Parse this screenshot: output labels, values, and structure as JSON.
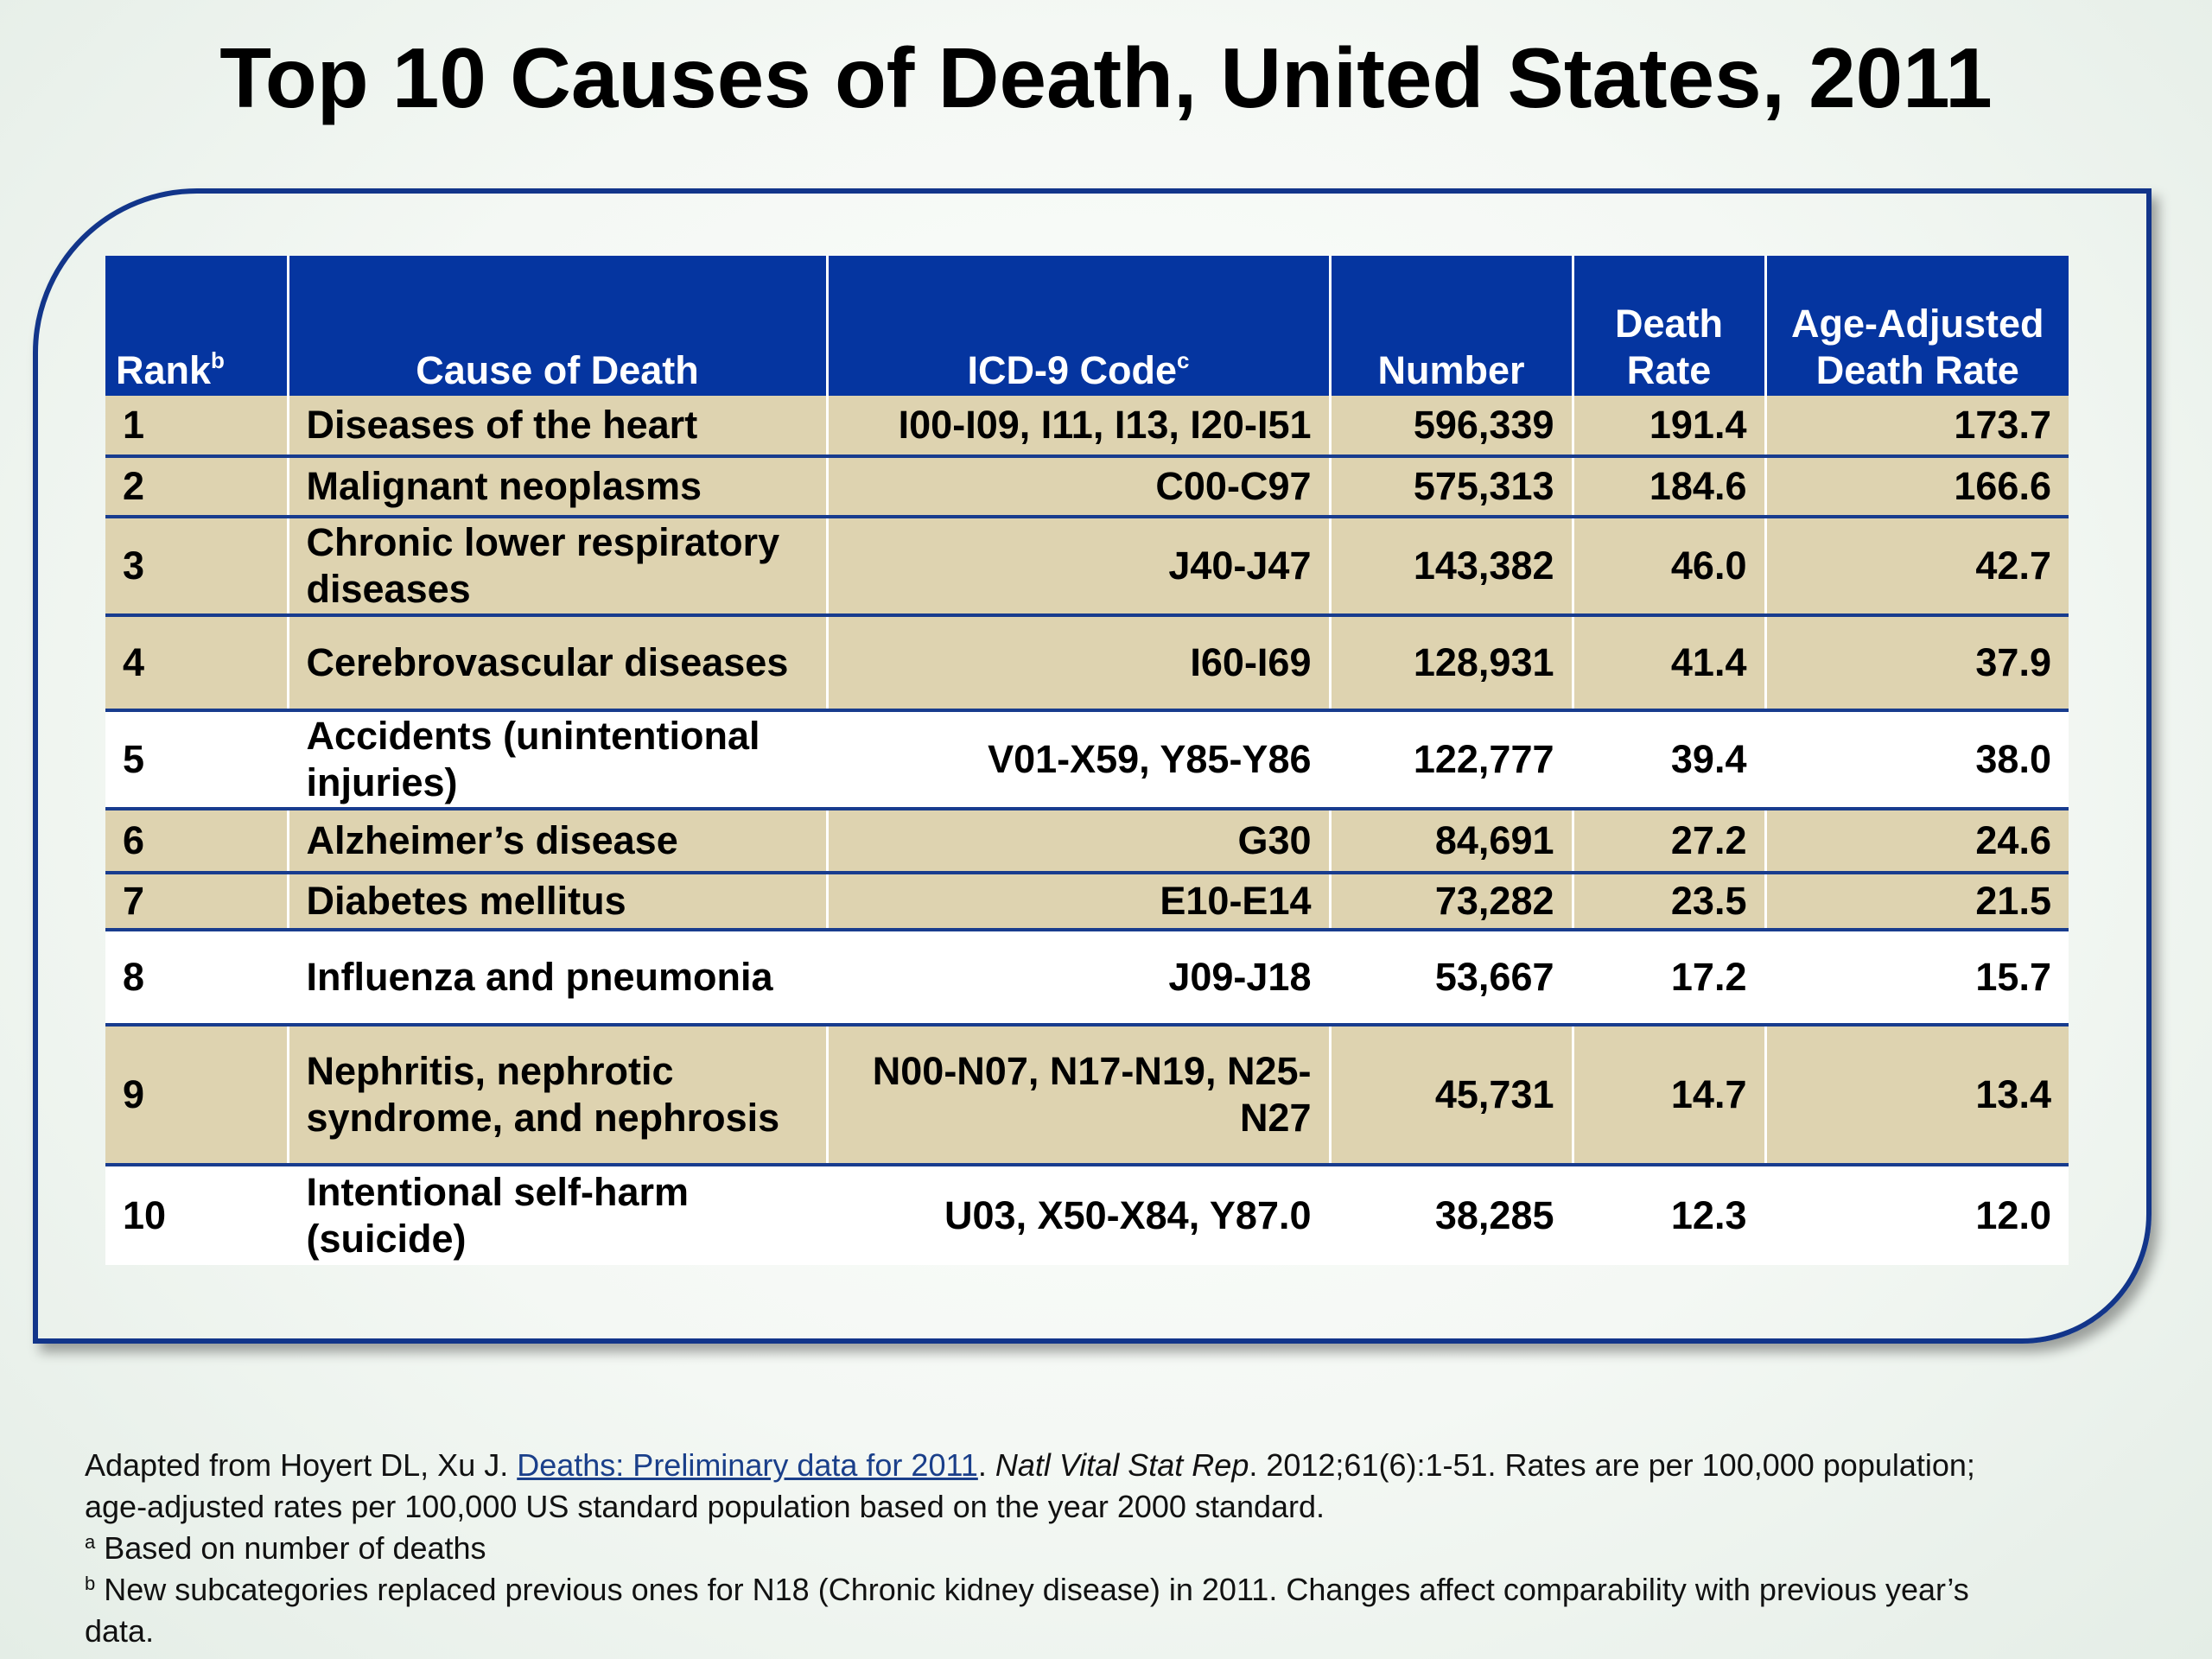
{
  "title": "Top 10 Causes of Death, United States, 2011",
  "table": {
    "headers": {
      "rank": "Rank",
      "rank_sup": "b",
      "cause": "Cause of Death",
      "icd": "ICD-9 Code",
      "icd_sup": "c",
      "number": "Number",
      "death_rate_1": "Death",
      "death_rate_2": "Rate",
      "age_adj_1": "Age-Adjusted",
      "age_adj_2": "Death Rate"
    },
    "rows": [
      {
        "rank": "1",
        "cause_1": "Diseases of the heart",
        "cause_2": "",
        "icd_1": "I00-I09, I11, I13, I20-I51",
        "icd_2": "",
        "number": "596,339",
        "rate": "191.4",
        "adj": "173.7"
      },
      {
        "rank": "2",
        "cause_1": "Malignant neoplasms",
        "cause_2": "",
        "icd_1": "C00-C97",
        "icd_2": "",
        "number": "575,313",
        "rate": "184.6",
        "adj": "166.6"
      },
      {
        "rank": "3",
        "cause_1": "Chronic lower respiratory",
        "cause_2": "diseases",
        "icd_1": "J40-J47",
        "icd_2": "",
        "number": "143,382",
        "rate": "46.0",
        "adj": "42.7"
      },
      {
        "rank": "4",
        "cause_1": "Cerebrovascular diseases",
        "cause_2": "",
        "icd_1": "I60-I69",
        "icd_2": "",
        "number": "128,931",
        "rate": "41.4",
        "adj": "37.9"
      },
      {
        "rank": "5",
        "cause_1": "Accidents (unintentional",
        "cause_2": "injuries)",
        "icd_1": "V01-X59, Y85-Y86",
        "icd_2": "",
        "number": "122,777",
        "rate": "39.4",
        "adj": "38.0"
      },
      {
        "rank": "6",
        "cause_1": "Alzheimer’s disease",
        "cause_2": "",
        "icd_1": "G30",
        "icd_2": "",
        "number": "84,691",
        "rate": "27.2",
        "adj": "24.6"
      },
      {
        "rank": "7",
        "cause_1": "Diabetes mellitus",
        "cause_2": "",
        "icd_1": "E10-E14",
        "icd_2": "",
        "number": "73,282",
        "rate": "23.5",
        "adj": "21.5"
      },
      {
        "rank": "8",
        "cause_1": "Influenza and pneumonia",
        "cause_2": "",
        "icd_1": "J09-J18",
        "icd_2": "",
        "number": "53,667",
        "rate": "17.2",
        "adj": "15.7"
      },
      {
        "rank": "9",
        "cause_1": "Nephritis, nephrotic",
        "cause_2": "syndrome, and nephrosis",
        "icd_1": "N00-N07, N17-N19, N25-",
        "icd_2": "N27",
        "number": "45,731",
        "rate": "14.7",
        "adj": "13.4"
      },
      {
        "rank": "10",
        "cause_1": "Intentional self-harm",
        "cause_2": "(suicide)",
        "icd_1": "U03, X50-X84, Y87.0",
        "icd_2": "",
        "number": "38,285",
        "rate": "12.3",
        "adj": "12.0"
      }
    ]
  },
  "footer": {
    "line1_a": "Adapted from  Hoyert DL, Xu J. ",
    "line1_link": "Deaths: Preliminary data for 2011",
    "line1_b": ". ",
    "line1_journal": "Natl Vital Stat Rep",
    "line1_c": ". 2012;61(6):1-51. Rates are per 100,000 population;",
    "line2": "age-adjusted rates per 100,000 US standard population based on the year 2000 standard.",
    "note_a_sup": "a",
    "note_a": " Based on number of deaths",
    "note_b_sup": "b",
    "note_b_1": " New subcategories replaced previous ones for N18 (Chronic kidney disease) in 2011. Changes affect comparability with previous year’s",
    "note_b_2": "data."
  }
}
